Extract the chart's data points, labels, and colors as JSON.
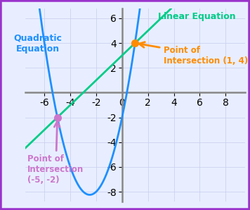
{
  "xlim": [
    -7.5,
    9.5
  ],
  "ylim": [
    -8.8,
    6.8
  ],
  "xticks": [
    -6,
    -4,
    -2,
    0,
    2,
    4,
    6,
    8
  ],
  "yticks": [
    -8,
    -6,
    -4,
    -2,
    2,
    4,
    6
  ],
  "quadratic_color": "#1E90FF",
  "linear_color": "#00CC88",
  "intersection1": [
    1,
    4
  ],
  "intersection2": [
    -5,
    -2
  ],
  "intersection1_color": "#FF8C00",
  "intersection2_color": "#CC77CC",
  "label_quadratic": "Quadratic\nEquation",
  "label_linear": "Linear Equation",
  "label_int1": "Point of\nIntersection (1, 4)",
  "label_int2": "Point of\nIntersection\n(-5, -2)",
  "background_color": "#E8EEFF",
  "grid_color": "#C8CCED",
  "border_color": "#9933CC",
  "quadratic_a": 1,
  "quadratic_b": 5,
  "quadratic_c": -2,
  "linear_m": 1,
  "linear_b": 3,
  "line_width": 2.0,
  "tick_fontsize": 7.5,
  "label_fontsize": 9.0,
  "annot_fontsize": 8.5
}
